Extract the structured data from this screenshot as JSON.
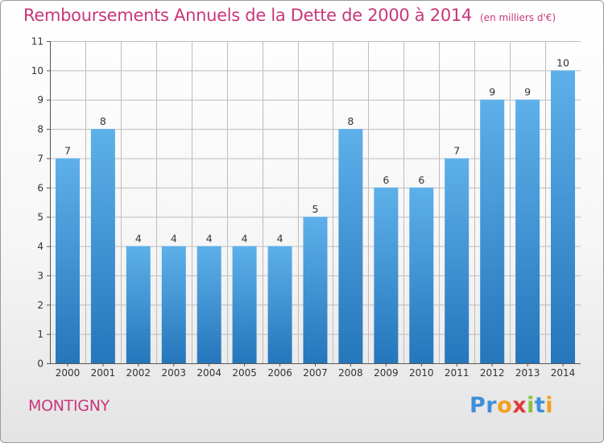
{
  "title": "Remboursements Annuels de la Dette de 2000 à 2014",
  "subtitle": "(en milliers d'€)",
  "commune": "MONTIGNY",
  "logo": {
    "letters": [
      "P",
      "r",
      "o",
      "x",
      "i",
      "t",
      "i"
    ],
    "colors": [
      "#3f8fd8",
      "#3f8fd8",
      "#f0a020",
      "#e23a3a",
      "#8ac43f",
      "#3f8fd8",
      "#f0a020"
    ]
  },
  "colors": {
    "bar_top": "#5eb0ea",
    "bar_bottom": "#2576bb",
    "title": "#c8377a",
    "axis": "#555555",
    "grid": "#bdbdbd"
  },
  "chart_data": {
    "type": "bar",
    "title": "Remboursements Annuels de la Dette de 2000 à 2014",
    "ylabel": "en milliers d'€",
    "xlabel": "",
    "categories": [
      "2000",
      "2001",
      "2002",
      "2003",
      "2004",
      "2005",
      "2006",
      "2007",
      "2008",
      "2009",
      "2010",
      "2011",
      "2012",
      "2013",
      "2014"
    ],
    "values": [
      7,
      8,
      4,
      4,
      4,
      4,
      4,
      5,
      8,
      6,
      6,
      7,
      9,
      9,
      10
    ],
    "data_labels": [
      "7",
      "8",
      "4",
      "4",
      "4",
      "4",
      "4",
      "5",
      "8",
      "6",
      "6",
      "7",
      "9",
      "9",
      "10"
    ],
    "ylim": [
      0,
      11
    ],
    "yticks": [
      "0",
      "1",
      "2",
      "3",
      "4",
      "5",
      "6",
      "7",
      "8",
      "9",
      "10",
      "11"
    ],
    "grid": true
  }
}
